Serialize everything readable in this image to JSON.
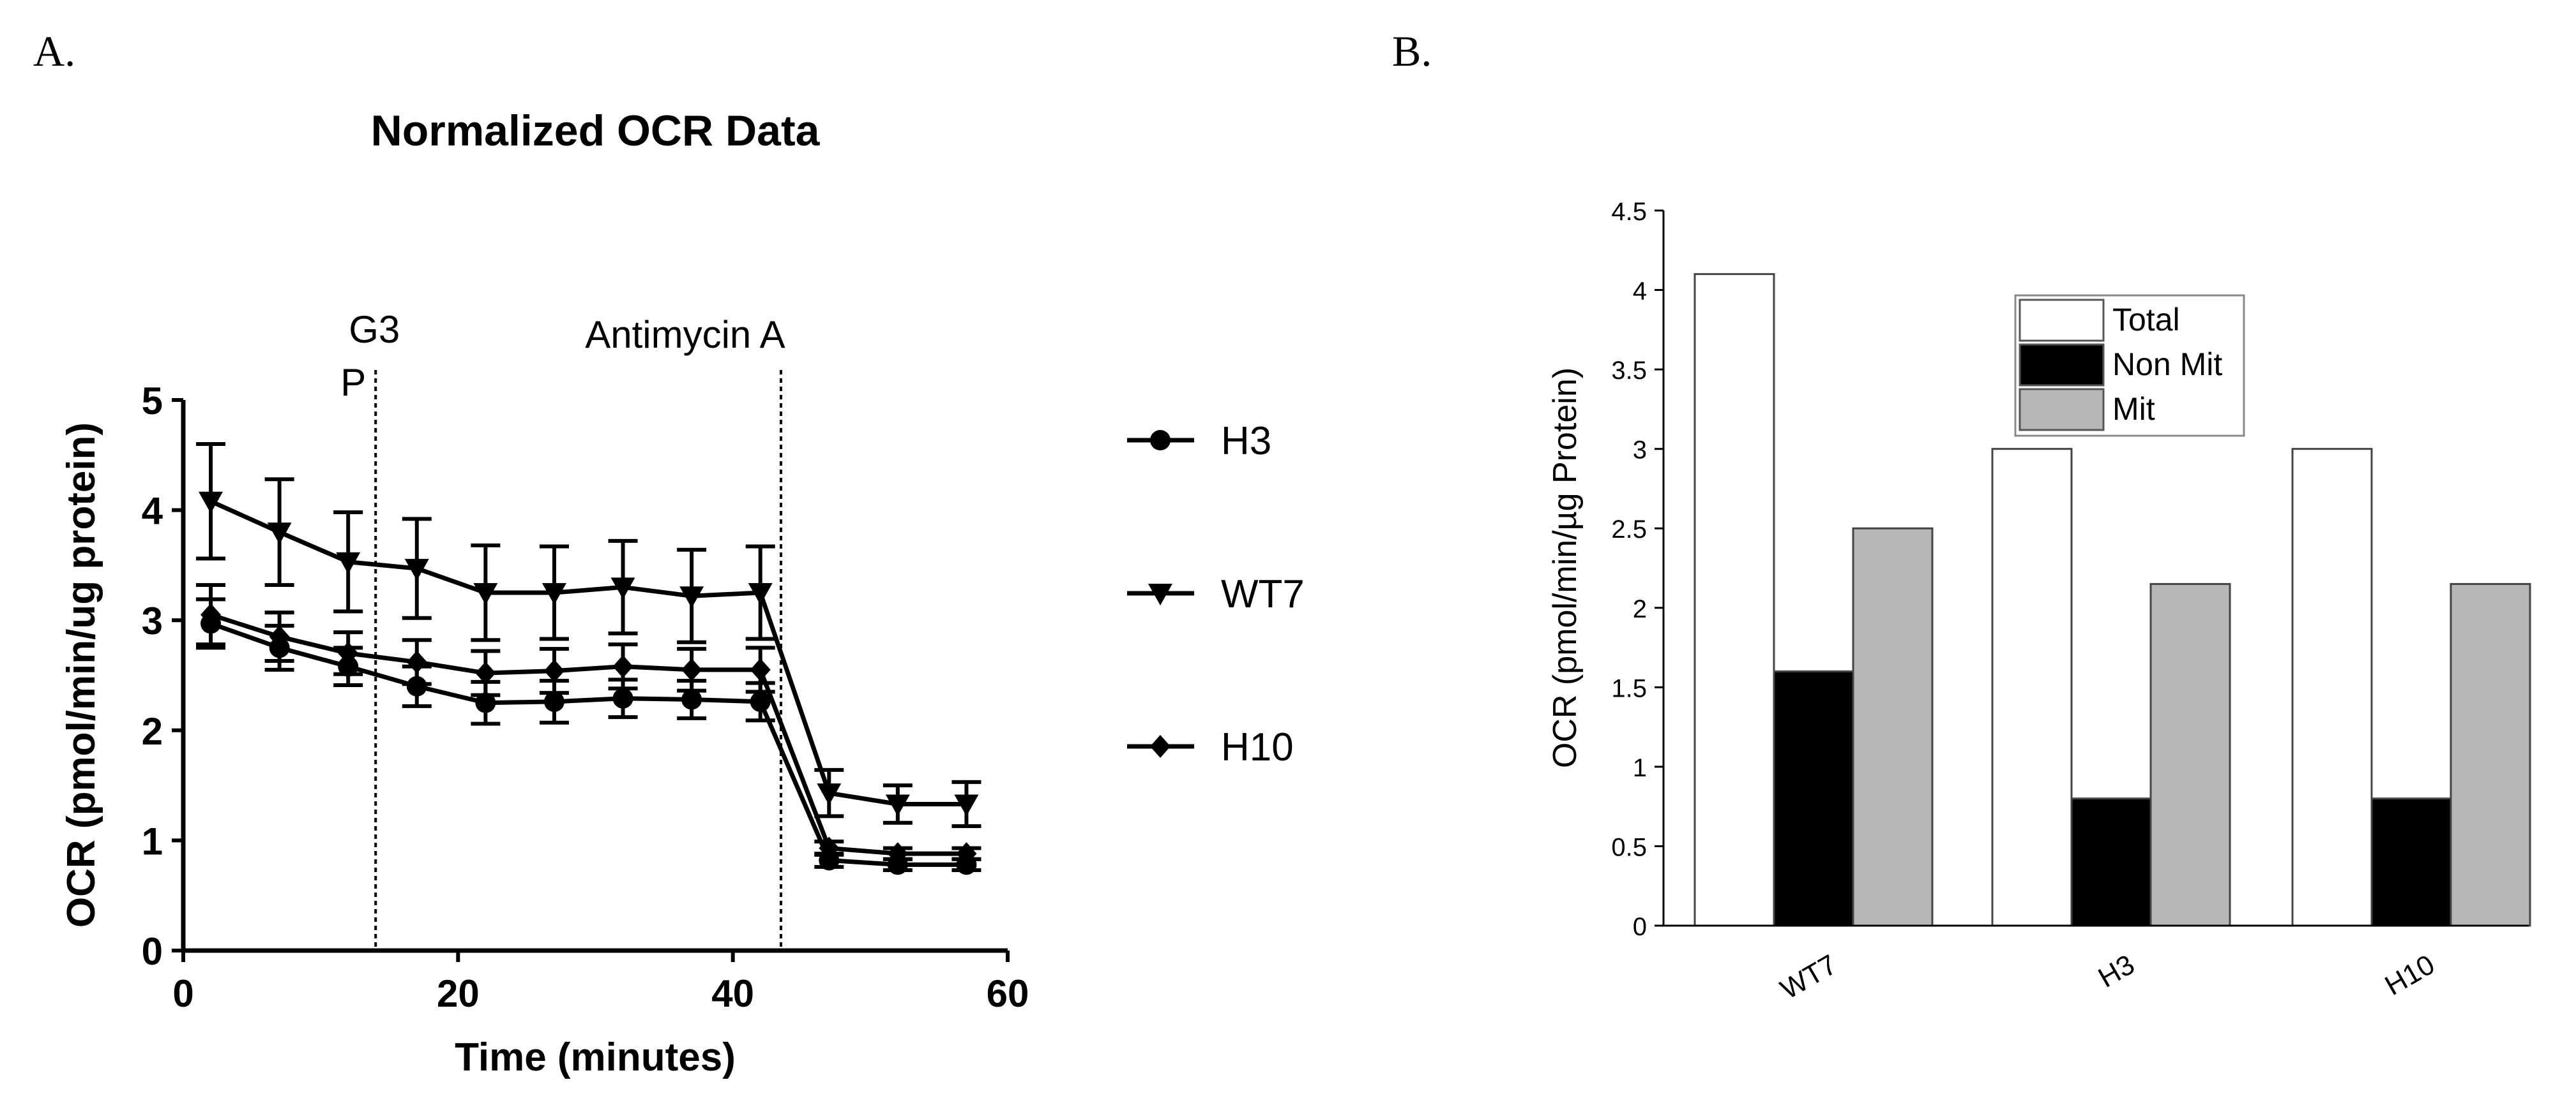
{
  "panels": {
    "left": {
      "label": "A."
    },
    "right": {
      "label": "B."
    }
  },
  "colors": {
    "ink": "#000000",
    "total_fill": "#ffffff",
    "non_mit_fill": "#000000",
    "mit_fill": "#b7b7b7",
    "bar_stroke": "#444444"
  },
  "chart_data": [
    {
      "type": "line",
      "title": "Normalized OCR Data",
      "xlabel": "Time (minutes)",
      "ylabel": "OCR (pmol/min/ug protein)",
      "xlim": [
        0,
        60
      ],
      "ylim": [
        0,
        5
      ],
      "xticks": [
        "0",
        "20",
        "40",
        "60"
      ],
      "yticks": [
        "0",
        "1",
        "2",
        "3",
        "4",
        "5"
      ],
      "x": [
        2,
        7,
        12,
        17,
        22,
        27,
        32,
        37,
        42,
        47,
        52,
        57
      ],
      "annotations": [
        {
          "text_line1": "G3",
          "text_line2": "P",
          "x": 14
        },
        {
          "text_line1": "Antimycin A",
          "text_line2": "",
          "x": 43.5
        }
      ],
      "legend_position": "right",
      "series": [
        {
          "name": "H3",
          "marker": "circle",
          "values": [
            2.97,
            2.75,
            2.58,
            2.4,
            2.25,
            2.26,
            2.29,
            2.28,
            2.26,
            0.82,
            0.78,
            0.78
          ],
          "errors": [
            0.22,
            0.2,
            0.17,
            0.18,
            0.19,
            0.19,
            0.17,
            0.17,
            0.17,
            0.06,
            0.05,
            0.05
          ]
        },
        {
          "name": "WT7",
          "marker": "triangle-down",
          "values": [
            4.08,
            3.8,
            3.53,
            3.47,
            3.25,
            3.25,
            3.3,
            3.22,
            3.25,
            1.43,
            1.33,
            1.33
          ],
          "errors": [
            0.52,
            0.48,
            0.45,
            0.45,
            0.43,
            0.42,
            0.42,
            0.42,
            0.42,
            0.21,
            0.17,
            0.2
          ]
        },
        {
          "name": "H10",
          "marker": "diamond",
          "values": [
            3.05,
            2.85,
            2.7,
            2.62,
            2.52,
            2.54,
            2.58,
            2.55,
            2.55,
            0.93,
            0.88,
            0.88
          ],
          "errors": [
            0.27,
            0.22,
            0.19,
            0.2,
            0.2,
            0.2,
            0.2,
            0.19,
            0.2,
            0.06,
            0.05,
            0.05
          ]
        }
      ]
    },
    {
      "type": "bar",
      "title": "",
      "xlabel": "",
      "ylabel": "OCR (pmol/min/µg Protein)",
      "ylim": [
        0,
        4.5
      ],
      "yticks": [
        "0",
        "0.5",
        "1",
        "1.5",
        "2",
        "2.5",
        "3",
        "3.5",
        "4",
        "4.5"
      ],
      "categories": [
        "WT7",
        "H3",
        "H10"
      ],
      "legend_position": "top-center",
      "series": [
        {
          "name": "Total",
          "values": [
            4.1,
            3.0,
            3.0
          ]
        },
        {
          "name": "Non Mit",
          "values": [
            1.6,
            0.8,
            0.8
          ]
        },
        {
          "name": "Mit",
          "values": [
            2.5,
            2.15,
            2.15
          ]
        }
      ]
    }
  ]
}
